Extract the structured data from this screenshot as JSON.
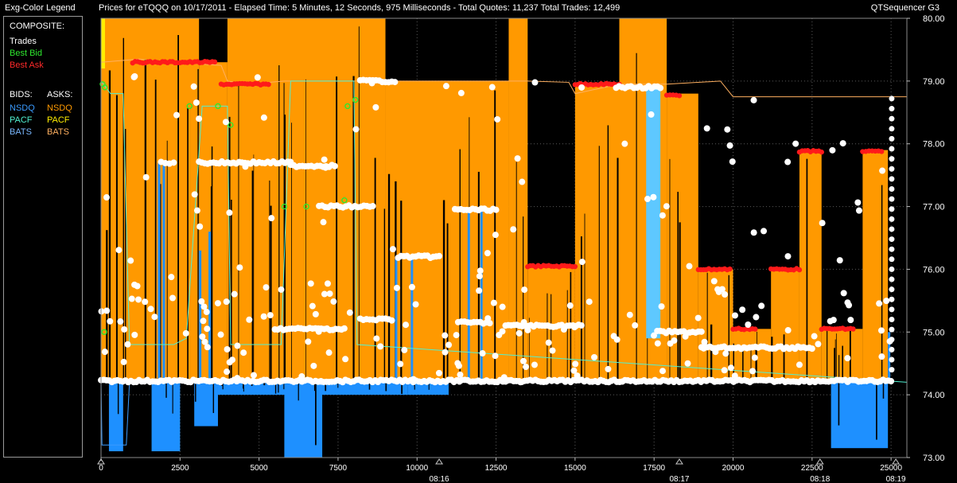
{
  "window": {
    "legend_title": "Exg-Color Legend",
    "main_title": "Prices for  eTQQQ  on  10/17/2011  -  Elapsed Time: 5 Minutes, 12 Seconds, 975 Milliseconds  -  Total Quotes: 11,237  Total Trades: 12,499",
    "brand": "QTSequencer G3"
  },
  "legend": {
    "composite_label": "COMPOSITE:",
    "composite_items": [
      {
        "label": "Trades",
        "color": "#ffffff"
      },
      {
        "label": "Best Bid",
        "color": "#2ee82e"
      },
      {
        "label": "Best Ask",
        "color": "#ff2a2a"
      }
    ],
    "bids_label": "BIDS:",
    "asks_label": "ASKS:",
    "bids": [
      {
        "label": "NSDQ",
        "color": "#3a9bff"
      },
      {
        "label": "PACF",
        "color": "#50f0d0"
      },
      {
        "label": "BATS",
        "color": "#7ab8ff"
      }
    ],
    "asks": [
      {
        "label": "NSDQ",
        "color": "#ff9a00"
      },
      {
        "label": "PACF",
        "color": "#ffee00"
      },
      {
        "label": "BATS",
        "color": "#ffb060"
      }
    ]
  },
  "chart_data": {
    "type": "bar",
    "x_range": [
      0,
      25500
    ],
    "ylim": [
      73,
      80
    ],
    "y_ticks": [
      "73.00",
      "74.00",
      "75.00",
      "76.00",
      "77.00",
      "78.00",
      "79.00",
      "80.00"
    ],
    "x_ticks": [
      "0",
      "2500",
      "5000",
      "7500",
      "10000",
      "12500",
      "15000",
      "17500",
      "20000",
      "22500",
      "25000"
    ],
    "time_ticks": [
      {
        "x": 10700,
        "label": "08:16"
      },
      {
        "x": 18300,
        "label": "08:17"
      },
      {
        "x": 22750,
        "label": "08:18"
      },
      {
        "x": 25150,
        "label": "08:19"
      }
    ],
    "grid": true,
    "ask_regions": [
      {
        "x0": 0,
        "x1": 3100,
        "top": 80.0
      },
      {
        "x0": 3100,
        "x1": 4000,
        "top": 79.3
      },
      {
        "x0": 4000,
        "x1": 9000,
        "top": 80.0
      },
      {
        "x0": 9000,
        "x1": 12900,
        "top": 79.0
      },
      {
        "x0": 12900,
        "x1": 13500,
        "top": 80.0
      },
      {
        "x0": 13500,
        "x1": 15000,
        "top": 76.05
      },
      {
        "x0": 15000,
        "x1": 16400,
        "top": 78.95
      },
      {
        "x0": 16400,
        "x1": 17900,
        "top": 80.0
      },
      {
        "x0": 17900,
        "x1": 18900,
        "top": 78.8
      },
      {
        "x0": 18900,
        "x1": 20000,
        "top": 76.0
      },
      {
        "x0": 20000,
        "x1": 21200,
        "top": 75.05
      },
      {
        "x0": 21200,
        "x1": 22100,
        "top": 76.0
      },
      {
        "x0": 22100,
        "x1": 22800,
        "top": 77.9
      },
      {
        "x0": 22800,
        "x1": 24100,
        "top": 75.05
      },
      {
        "x0": 24100,
        "x1": 24900,
        "top": 77.9
      }
    ],
    "bid_regions": [
      {
        "x0": 250,
        "x1": 700,
        "bottom": 73.1
      },
      {
        "x0": 1600,
        "x1": 2500,
        "bottom": 73.1
      },
      {
        "x0": 2950,
        "x1": 3700,
        "bottom": 73.5
      },
      {
        "x0": 3700,
        "x1": 9700,
        "bottom": 74.0
      },
      {
        "x0": 5800,
        "x1": 7000,
        "bottom": 73.0
      },
      {
        "x0": 9700,
        "x1": 11000,
        "bottom": 74.0
      },
      {
        "x0": 23100,
        "x1": 24900,
        "bottom": 73.15
      }
    ],
    "best_ask_line": [
      [
        0,
        79.3
      ],
      [
        1200,
        79.35
      ],
      [
        2200,
        79.3
      ],
      [
        3800,
        79.25
      ],
      [
        4000,
        79.0
      ],
      [
        4600,
        78.95
      ],
      [
        5800,
        79.0
      ],
      [
        9000,
        79.0
      ],
      [
        12900,
        79.0
      ],
      [
        13500,
        79.0
      ],
      [
        14800,
        78.98
      ],
      [
        15000,
        78.8
      ],
      [
        16400,
        78.95
      ],
      [
        17900,
        78.95
      ],
      [
        19600,
        79.0
      ],
      [
        20000,
        78.75
      ],
      [
        25500,
        78.75
      ]
    ],
    "best_bid_line": [
      [
        0,
        79.0
      ],
      [
        300,
        78.8
      ],
      [
        700,
        78.8
      ],
      [
        900,
        74.8
      ],
      [
        2300,
        74.8
      ],
      [
        2700,
        74.9
      ],
      [
        3200,
        78.6
      ],
      [
        4000,
        78.6
      ],
      [
        4100,
        74.8
      ],
      [
        5700,
        74.8
      ],
      [
        6000,
        79.0
      ],
      [
        8000,
        79.0
      ],
      [
        8100,
        74.8
      ],
      [
        25500,
        74.2
      ]
    ],
    "trade_clusters": [
      {
        "x0": 0,
        "x1": 25000,
        "y": 74.22
      },
      {
        "x0": 1900,
        "x1": 2300,
        "y": 77.7
      },
      {
        "x0": 3100,
        "x1": 6000,
        "y": 77.7
      },
      {
        "x0": 6000,
        "x1": 7400,
        "y": 77.65
      },
      {
        "x0": 6900,
        "x1": 8600,
        "y": 77.0
      },
      {
        "x0": 9400,
        "x1": 10700,
        "y": 76.2
      },
      {
        "x0": 11200,
        "x1": 12500,
        "y": 76.95
      },
      {
        "x0": 8200,
        "x1": 9300,
        "y": 79.0
      },
      {
        "x0": 16300,
        "x1": 17700,
        "y": 78.9
      },
      {
        "x0": 17600,
        "x1": 19000,
        "y": 75.0
      },
      {
        "x0": 19000,
        "x1": 22500,
        "y": 74.75
      },
      {
        "x0": 11300,
        "x1": 12300,
        "y": 75.15
      },
      {
        "x0": 12800,
        "x1": 15200,
        "y": 75.1
      },
      {
        "x0": 8200,
        "x1": 9200,
        "y": 75.2
      },
      {
        "x0": 5500,
        "x1": 7700,
        "y": 75.05
      }
    ],
    "ask_marker_clusters": [
      {
        "x0": 1000,
        "x1": 3600,
        "y": 79.3
      },
      {
        "x0": 3800,
        "x1": 5300,
        "y": 78.95
      },
      {
        "x0": 13500,
        "x1": 15000,
        "y": 76.05
      },
      {
        "x0": 15000,
        "x1": 16400,
        "y": 78.95
      },
      {
        "x0": 17900,
        "x1": 18300,
        "y": 78.77
      },
      {
        "x0": 18900,
        "x1": 19900,
        "y": 76.0
      },
      {
        "x0": 20000,
        "x1": 20700,
        "y": 75.05
      },
      {
        "x0": 21200,
        "x1": 22100,
        "y": 76.0
      },
      {
        "x0": 22100,
        "x1": 22800,
        "y": 77.88
      },
      {
        "x0": 22800,
        "x1": 23800,
        "y": 75.05
      },
      {
        "x0": 24100,
        "x1": 24700,
        "y": 77.88
      }
    ]
  }
}
